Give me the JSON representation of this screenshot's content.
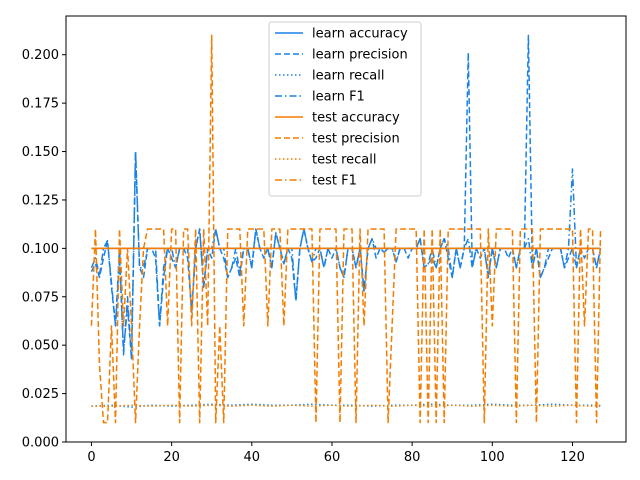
{
  "chart_data": {
    "type": "line",
    "title": "",
    "xlabel": "",
    "ylabel": "",
    "xlim": [
      -6.35,
      133.35
    ],
    "ylim": [
      0.0,
      0.22
    ],
    "xticks": [
      0,
      20,
      40,
      60,
      80,
      100,
      120
    ],
    "yticks": [
      0.0,
      0.025,
      0.05,
      0.075,
      0.1,
      0.125,
      0.15,
      0.175,
      0.2
    ],
    "xtick_labels": [
      "0",
      "20",
      "40",
      "60",
      "80",
      "100",
      "120"
    ],
    "ytick_labels": [
      "0.000",
      "0.025",
      "0.050",
      "0.075",
      "0.100",
      "0.125",
      "0.150",
      "0.175",
      "0.200"
    ],
    "grid": false,
    "legend_position": "top-center",
    "colors": {
      "learn": "#1f77b4",
      "learn_bright": "#1a82e6",
      "test": "#ff7f0e",
      "test_bright": "#f57c00"
    },
    "series": [
      {
        "name": "learn accuracy",
        "color": "#1a82e6",
        "dash": "solid",
        "x": [
          0,
          127
        ],
        "y": [
          0.1,
          0.1
        ]
      },
      {
        "name": "learn precision",
        "color": "#1a82e6",
        "dash": "dashed",
        "x": [
          0,
          1,
          2,
          3,
          4,
          5,
          6,
          7,
          8,
          9,
          10,
          11,
          12,
          13,
          14,
          15,
          16,
          17,
          18,
          19,
          20,
          21,
          22,
          23,
          24,
          25,
          26,
          27,
          28,
          29,
          30,
          31,
          32,
          33,
          34,
          35,
          36,
          37,
          38,
          39,
          40,
          41,
          42,
          43,
          44,
          45,
          46,
          47,
          48,
          49,
          50,
          51,
          52,
          53,
          54,
          55,
          56,
          57,
          58,
          59,
          60,
          61,
          62,
          63,
          64,
          65,
          66,
          67,
          68,
          69,
          70,
          71,
          72,
          73,
          74,
          75,
          76,
          77,
          78,
          79,
          80,
          81,
          82,
          83,
          84,
          85,
          86,
          87,
          88,
          89,
          90,
          91,
          92,
          93,
          94,
          95,
          96,
          97,
          98,
          99,
          100,
          101,
          102,
          103,
          104,
          105,
          106,
          107,
          108,
          109,
          110,
          111,
          112,
          113,
          114,
          115,
          116,
          117,
          118,
          119,
          120,
          121,
          122,
          123,
          124,
          125,
          126,
          127
        ],
        "y": [
          0.088,
          0.092,
          0.085,
          0.095,
          0.104,
          0.08,
          0.06,
          0.095,
          0.047,
          0.07,
          0.043,
          0.15,
          0.09,
          0.085,
          0.1,
          0.1,
          0.095,
          0.06,
          0.085,
          0.1,
          0.095,
          0.09,
          0.1,
          0.1,
          0.095,
          0.067,
          0.1,
          0.11,
          0.08,
          0.1,
          0.095,
          0.11,
          0.1,
          0.095,
          0.085,
          0.09,
          0.095,
          0.085,
          0.1,
          0.1,
          0.09,
          0.11,
          0.1,
          0.095,
          0.1,
          0.09,
          0.108,
          0.1,
          0.092,
          0.1,
          0.095,
          0.073,
          0.1,
          0.11,
          0.1,
          0.093,
          0.095,
          0.1,
          0.09,
          0.1,
          0.095,
          0.1,
          0.09,
          0.085,
          0.1,
          0.1,
          0.09,
          0.1,
          0.078,
          0.1,
          0.105,
          0.095,
          0.1,
          0.098,
          0.1,
          0.1,
          0.093,
          0.1,
          0.1,
          0.095,
          0.1,
          0.1,
          0.105,
          0.09,
          0.092,
          0.095,
          0.09,
          0.1,
          0.105,
          0.095,
          0.085,
          0.1,
          0.09,
          0.1,
          0.201,
          0.09,
          0.1,
          0.095,
          0.1,
          0.085,
          0.1,
          0.09,
          0.1,
          0.1,
          0.095,
          0.1,
          0.09,
          0.1,
          0.1,
          0.21,
          0.09,
          0.1,
          0.085,
          0.09,
          0.095,
          0.1,
          0.1,
          0.1,
          0.09,
          0.095,
          0.1,
          0.09,
          0.1,
          0.095,
          0.1,
          0.1,
          0.09,
          0.1
        ]
      },
      {
        "name": "learn recall",
        "color": "#1a82e6",
        "dash": "dotted",
        "x": [
          0,
          5,
          10,
          15,
          20,
          25,
          30,
          35,
          40,
          45,
          50,
          55,
          60,
          65,
          70,
          75,
          80,
          85,
          90,
          95,
          100,
          105,
          110,
          115,
          120,
          125,
          127
        ],
        "y": [
          0.0185,
          0.019,
          0.018,
          0.019,
          0.0185,
          0.019,
          0.0195,
          0.019,
          0.0195,
          0.019,
          0.019,
          0.0195,
          0.019,
          0.019,
          0.0185,
          0.019,
          0.019,
          0.0195,
          0.019,
          0.019,
          0.0195,
          0.019,
          0.019,
          0.0195,
          0.019,
          0.019,
          0.0185
        ]
      },
      {
        "name": "learn F1",
        "color": "#1a82e6",
        "dash": "dashdot",
        "x": [
          0,
          1,
          2,
          3,
          4,
          5,
          6,
          7,
          8,
          9,
          10,
          11,
          12,
          13,
          14,
          15,
          16,
          17,
          18,
          19,
          20,
          21,
          22,
          23,
          24,
          25,
          26,
          27,
          28,
          29,
          30,
          31,
          32,
          33,
          34,
          35,
          36,
          37,
          38,
          39,
          40,
          41,
          42,
          43,
          44,
          45,
          46,
          47,
          48,
          49,
          50,
          51,
          52,
          53,
          54,
          55,
          56,
          57,
          58,
          59,
          60,
          61,
          62,
          63,
          64,
          65,
          66,
          67,
          68,
          69,
          70,
          71,
          72,
          73,
          74,
          75,
          76,
          77,
          78,
          79,
          80,
          81,
          82,
          83,
          84,
          85,
          86,
          87,
          88,
          89,
          90,
          91,
          92,
          93,
          94,
          95,
          96,
          97,
          98,
          99,
          100,
          101,
          102,
          103,
          104,
          105,
          106,
          107,
          108,
          109,
          110,
          111,
          112,
          113,
          114,
          115,
          116,
          117,
          118,
          119,
          120,
          121,
          122,
          123,
          124,
          125,
          126,
          127
        ],
        "y": [
          0.09,
          0.095,
          0.086,
          0.1,
          0.104,
          0.082,
          0.06,
          0.1,
          0.045,
          0.075,
          0.043,
          0.15,
          0.09,
          0.09,
          0.1,
          0.1,
          0.1,
          0.06,
          0.09,
          0.1,
          0.1,
          0.09,
          0.1,
          0.1,
          0.1,
          0.067,
          0.1,
          0.11,
          0.08,
          0.1,
          0.1,
          0.11,
          0.1,
          0.1,
          0.085,
          0.09,
          0.1,
          0.088,
          0.1,
          0.1,
          0.09,
          0.11,
          0.1,
          0.1,
          0.1,
          0.09,
          0.108,
          0.1,
          0.092,
          0.1,
          0.1,
          0.073,
          0.1,
          0.11,
          0.1,
          0.093,
          0.1,
          0.1,
          0.09,
          0.1,
          0.1,
          0.1,
          0.09,
          0.085,
          0.1,
          0.1,
          0.09,
          0.1,
          0.078,
          0.1,
          0.105,
          0.1,
          0.1,
          0.098,
          0.1,
          0.1,
          0.093,
          0.1,
          0.1,
          0.1,
          0.1,
          0.1,
          0.105,
          0.09,
          0.092,
          0.1,
          0.09,
          0.1,
          0.105,
          0.1,
          0.085,
          0.1,
          0.09,
          0.1,
          0.105,
          0.09,
          0.1,
          0.1,
          0.1,
          0.085,
          0.1,
          0.09,
          0.1,
          0.1,
          0.1,
          0.1,
          0.09,
          0.1,
          0.1,
          0.105,
          0.09,
          0.1,
          0.085,
          0.09,
          0.1,
          0.1,
          0.1,
          0.1,
          0.09,
          0.1,
          0.141,
          0.09,
          0.1,
          0.1,
          0.1,
          0.1,
          0.09,
          0.1
        ]
      },
      {
        "name": "test accuracy",
        "color": "#f57c00",
        "dash": "solid",
        "x": [
          0,
          127
        ],
        "y": [
          0.1,
          0.1
        ]
      },
      {
        "name": "test precision",
        "color": "#f57c00",
        "dash": "dashed",
        "x": [
          0,
          1,
          2,
          3,
          4,
          5,
          6,
          7,
          8,
          9,
          10,
          11,
          12,
          13,
          14,
          15,
          16,
          17,
          18,
          19,
          20,
          21,
          22,
          23,
          24,
          25,
          26,
          27,
          28,
          29,
          30,
          31,
          32,
          33,
          34,
          35,
          36,
          37,
          38,
          39,
          40,
          41,
          42,
          43,
          44,
          45,
          46,
          47,
          48,
          49,
          50,
          51,
          52,
          53,
          54,
          55,
          56,
          57,
          58,
          59,
          60,
          61,
          62,
          63,
          64,
          65,
          66,
          67,
          68,
          69,
          70,
          71,
          72,
          73,
          74,
          75,
          76,
          77,
          78,
          79,
          80,
          81,
          82,
          83,
          84,
          85,
          86,
          87,
          88,
          89,
          90,
          91,
          92,
          93,
          94,
          95,
          96,
          97,
          98,
          99,
          100,
          101,
          102,
          103,
          104,
          105,
          106,
          107,
          108,
          109,
          110,
          111,
          112,
          113,
          114,
          115,
          116,
          117,
          118,
          119,
          120,
          121,
          122,
          123,
          124,
          125,
          126,
          127
        ],
        "y": [
          0.06,
          0.11,
          0.04,
          0.01,
          0.01,
          0.06,
          0.01,
          0.11,
          0.06,
          0.1,
          0.06,
          0.01,
          0.06,
          0.1,
          0.11,
          0.11,
          0.11,
          0.11,
          0.11,
          0.06,
          0.11,
          0.11,
          0.01,
          0.11,
          0.11,
          0.06,
          0.11,
          0.01,
          0.11,
          0.06,
          0.21,
          0.01,
          0.06,
          0.01,
          0.11,
          0.11,
          0.11,
          0.11,
          0.06,
          0.11,
          0.11,
          0.11,
          0.11,
          0.11,
          0.06,
          0.11,
          0.11,
          0.11,
          0.06,
          0.11,
          0.11,
          0.11,
          0.11,
          0.11,
          0.11,
          0.11,
          0.01,
          0.11,
          0.11,
          0.11,
          0.11,
          0.11,
          0.01,
          0.11,
          0.11,
          0.11,
          0.01,
          0.11,
          0.06,
          0.11,
          0.11,
          0.11,
          0.11,
          0.11,
          0.01,
          0.06,
          0.11,
          0.11,
          0.11,
          0.11,
          0.11,
          0.11,
          0.01,
          0.11,
          0.01,
          0.11,
          0.01,
          0.11,
          0.01,
          0.11,
          0.11,
          0.11,
          0.11,
          0.11,
          0.11,
          0.11,
          0.11,
          0.11,
          0.01,
          0.11,
          0.06,
          0.11,
          0.11,
          0.11,
          0.11,
          0.11,
          0.01,
          0.11,
          0.11,
          0.11,
          0.11,
          0.01,
          0.11,
          0.11,
          0.11,
          0.11,
          0.11,
          0.11,
          0.11,
          0.11,
          0.11,
          0.01,
          0.11,
          0.06,
          0.11,
          0.11,
          0.01,
          0.11
        ]
      },
      {
        "name": "test recall",
        "color": "#f57c00",
        "dash": "dotted",
        "x": [
          0,
          5,
          10,
          15,
          20,
          25,
          30,
          35,
          40,
          45,
          50,
          55,
          60,
          65,
          70,
          75,
          80,
          85,
          90,
          95,
          100,
          105,
          110,
          115,
          120,
          125,
          127
        ],
        "y": [
          0.0185,
          0.0185,
          0.019,
          0.0185,
          0.019,
          0.0185,
          0.019,
          0.0185,
          0.019,
          0.0185,
          0.019,
          0.0185,
          0.019,
          0.0185,
          0.019,
          0.0185,
          0.019,
          0.0185,
          0.019,
          0.0185,
          0.019,
          0.0185,
          0.019,
          0.0185,
          0.019,
          0.0185,
          0.019
        ]
      },
      {
        "name": "test F1",
        "color": "#f57c00",
        "dash": "dashdot",
        "x": [
          0,
          127
        ],
        "y": [
          0.1,
          0.1
        ]
      }
    ]
  }
}
